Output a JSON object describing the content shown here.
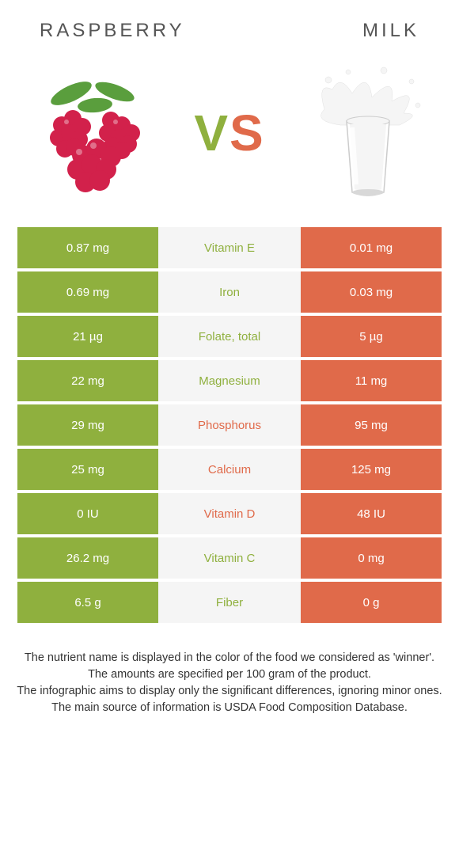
{
  "header": {
    "left": "RASPBERRY",
    "right": "MILK",
    "vs": "VS"
  },
  "colors": {
    "left_bg": "#8fb03e",
    "right_bg": "#e06a4a",
    "mid_bg": "#f5f5f5",
    "left_text": "#8fb03e",
    "right_text": "#e06a4a",
    "vs_left": "#8fb03e",
    "vs_right": "#e06a4a",
    "raspberry_body": "#d2214b",
    "raspberry_leaf": "#5a9e3d",
    "milk_white": "#f5f5f5",
    "milk_shadow": "#d8d8d8"
  },
  "rows": [
    {
      "left": "0.87 mg",
      "mid": "Vitamin E",
      "right": "0.01 mg",
      "winner": "left"
    },
    {
      "left": "0.69 mg",
      "mid": "Iron",
      "right": "0.03 mg",
      "winner": "left"
    },
    {
      "left": "21 µg",
      "mid": "Folate, total",
      "right": "5 µg",
      "winner": "left"
    },
    {
      "left": "22 mg",
      "mid": "Magnesium",
      "right": "11 mg",
      "winner": "left"
    },
    {
      "left": "29 mg",
      "mid": "Phosphorus",
      "right": "95 mg",
      "winner": "right"
    },
    {
      "left": "25 mg",
      "mid": "Calcium",
      "right": "125 mg",
      "winner": "right"
    },
    {
      "left": "0 IU",
      "mid": "Vitamin D",
      "right": "48 IU",
      "winner": "right"
    },
    {
      "left": "26.2 mg",
      "mid": "Vitamin C",
      "right": "0 mg",
      "winner": "left"
    },
    {
      "left": "6.5 g",
      "mid": "Fiber",
      "right": "0 g",
      "winner": "left"
    }
  ],
  "footer": {
    "l1": "The nutrient name is displayed in the color of the food we considered as 'winner'.",
    "l2": "The amounts are specified per 100 gram of the product.",
    "l3": "The infographic aims to display only the significant differences, ignoring minor ones.",
    "l4": "The main source of information is USDA Food Composition Database."
  }
}
